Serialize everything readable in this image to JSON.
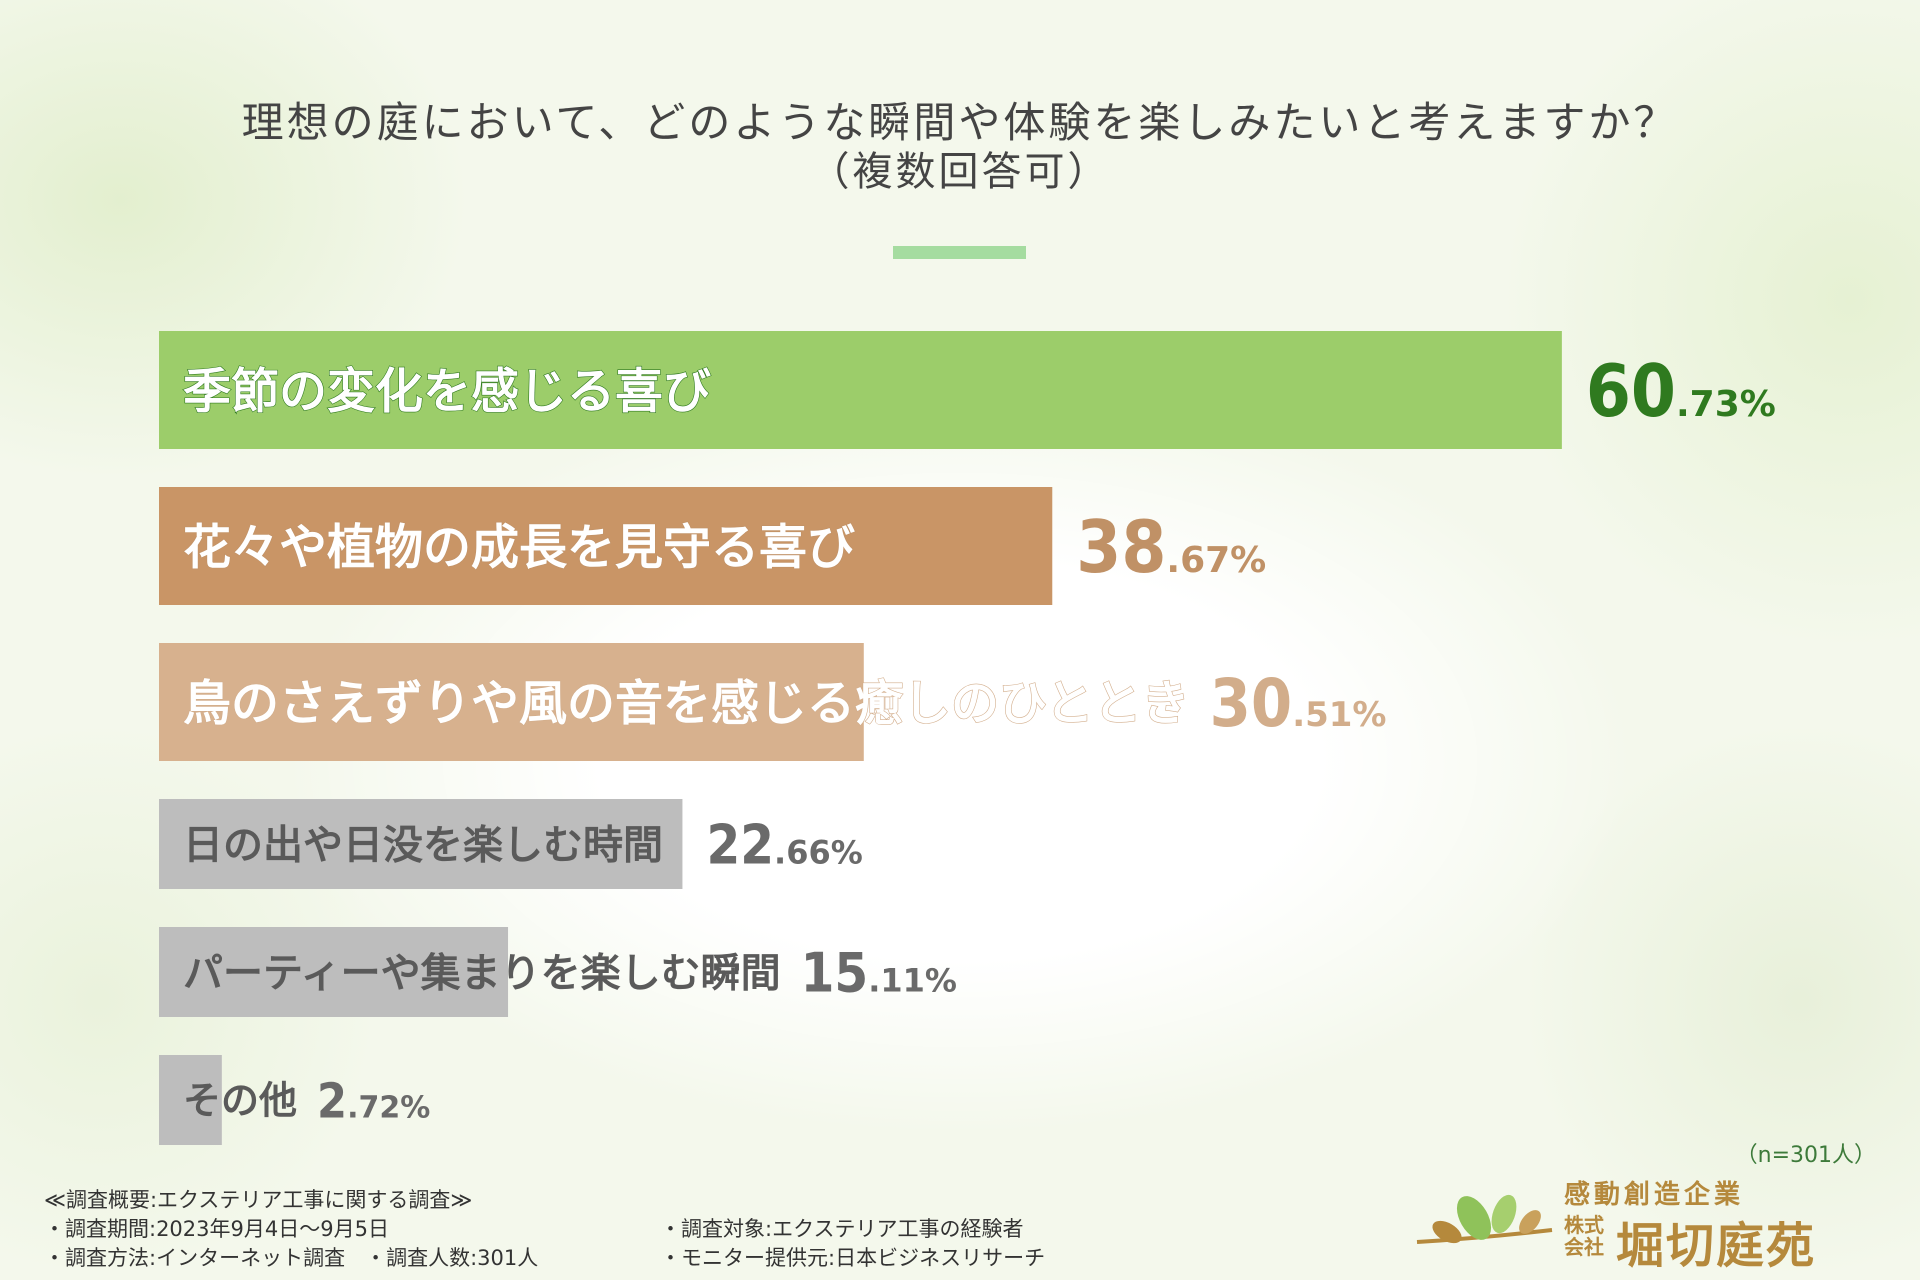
{
  "title": "理想の庭において、どのような瞬間や体験を楽しみたいと考えますか？",
  "subtitle": "（複数回答可）",
  "chart_data": {
    "type": "bar",
    "orientation": "horizontal",
    "categories": [
      "季節の変化を感じる喜び",
      "花々や植物の成長を見守る喜び",
      "鳥のさえずりや風の音を感じる癒しのひととき",
      "日の出や日没を楽しむ時間",
      "パーティーや集まりを楽しむ瞬間",
      "その他"
    ],
    "values": [
      60.73,
      38.67,
      30.51,
      22.66,
      15.11,
      2.72
    ],
    "value_labels": [
      {
        "int": "60",
        "dec": ".73%"
      },
      {
        "int": "38",
        "dec": ".67%"
      },
      {
        "int": "30",
        "dec": ".51%"
      },
      {
        "int": "22",
        "dec": ".66%"
      },
      {
        "int": "15",
        "dec": ".11%"
      },
      {
        "int": "2",
        "dec": ".72%"
      }
    ],
    "colors": [
      "#9ccd6a",
      "#c99566",
      "#d7b18e",
      "#bdbdbd",
      "#bdbdbd",
      "#bdbdbd"
    ],
    "value_colors": [
      "#2f7a1f",
      "#c09166",
      "#d2ad8b",
      "#6a6a6a",
      "#6a6a6a",
      "#6a6a6a"
    ],
    "xlim": [
      0,
      100
    ]
  },
  "sample_size": "（n=301人）",
  "survey": {
    "heading": "≪調査概要:エクステリア工事に関する調査≫",
    "period": "・調査期間:2023年9月4日〜9月5日",
    "method": "・調査方法:インターネット調査",
    "count": "・調査人数:301人",
    "target": "・調査対象:エクステリア工事の経験者",
    "provider": "・モニター提供元:日本ビジネスリサーチ"
  },
  "logo": {
    "tagline": "感動創造企業",
    "corp_top": "株式",
    "corp_bottom": "会社",
    "name": "堀切庭苑"
  }
}
